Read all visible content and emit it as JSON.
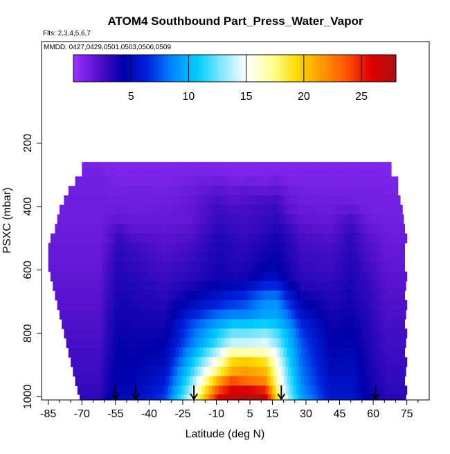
{
  "chart_data": {
    "type": "heatmap",
    "title": "ATOM4 Southbound Part_Press_Water_Vapor",
    "annotations": {
      "flights": "Flts: 2,3,4,5,6,7",
      "dates": "MMDD: 0427,0429,0501,0503,0506,0509"
    },
    "xlabel": "Latitude (deg N)",
    "ylabel": "PSXC (mbar)",
    "xlim": [
      -88,
      85
    ],
    "ylim": [
      1010,
      -120
    ],
    "x_ticks": [
      -85,
      -70,
      -55,
      -40,
      -25,
      -10,
      5,
      15,
      30,
      45,
      60,
      75
    ],
    "x_minor_ticks": [
      -80,
      -75,
      -65,
      -60,
      -50,
      -45,
      -35,
      -30,
      -20,
      -15,
      -5,
      0,
      10,
      20,
      25,
      35,
      40,
      50,
      55,
      65,
      70,
      80
    ],
    "y_ticks": [
      200,
      400,
      600,
      800,
      1000
    ],
    "colorbar": {
      "range": [
        0,
        28
      ],
      "ticks": [
        5,
        10,
        15,
        20,
        25
      ],
      "colors": [
        "#9933ff",
        "#5511cc",
        "#0000aa",
        "#0022dd",
        "#0088ff",
        "#00ccff",
        "#88e8ff",
        "#ffffff",
        "#ffff99",
        "#ffdd00",
        "#ff9900",
        "#ff5500",
        "#dd0000",
        "#aa1111"
      ]
    },
    "pressure_levels_mbar": [
      270,
      290,
      320,
      350,
      380,
      410,
      440,
      470,
      500,
      530,
      560,
      590,
      620,
      650,
      680,
      710,
      740,
      770,
      800,
      830,
      860,
      890,
      920,
      950,
      980,
      1005
    ],
    "latitude_extent_by_level": [
      [
        -70,
        68
      ],
      [
        -70,
        68
      ],
      [
        -73,
        70
      ],
      [
        -76,
        71
      ],
      [
        -78,
        72
      ],
      [
        -80,
        72
      ],
      [
        -81,
        73
      ],
      [
        -82,
        73
      ],
      [
        -84,
        74
      ],
      [
        -85,
        74
      ],
      [
        -85,
        74
      ],
      [
        -85,
        74
      ],
      [
        -84,
        74
      ],
      [
        -83,
        74
      ],
      [
        -82,
        74
      ],
      [
        -81,
        74
      ],
      [
        -80,
        74
      ],
      [
        -79,
        74
      ],
      [
        -78,
        74
      ],
      [
        -77,
        74
      ],
      [
        -76,
        74
      ],
      [
        -75,
        74
      ],
      [
        -74,
        74
      ],
      [
        -73,
        74
      ],
      [
        -72,
        74
      ],
      [
        -71,
        74
      ]
    ],
    "profile_latitudes": [
      -55,
      -46,
      -20,
      19,
      61
    ],
    "sample_lat": [
      -62,
      -58,
      -54,
      -47,
      -33,
      -22,
      -9,
      -3,
      3,
      12,
      17,
      22,
      28,
      41,
      50,
      57,
      66
    ],
    "sample_h2o": [
      [
        1.0,
        0.9,
        0.8,
        0.8,
        0.8,
        0.9,
        0.9,
        0.8,
        0.8,
        0.8,
        0.8,
        0.8,
        0.8,
        0.8,
        0.8,
        0.8,
        0.8
      ],
      [
        1.2,
        1.0,
        0.9,
        0.9,
        0.9,
        1.0,
        1.0,
        0.9,
        0.9,
        0.9,
        1.0,
        0.9,
        0.9,
        0.9,
        0.9,
        0.9,
        0.9
      ],
      [
        1.3,
        1.2,
        1.0,
        1.0,
        1.0,
        1.2,
        1.5,
        1.2,
        1.3,
        1.2,
        1.4,
        1.1,
        1.0,
        1.0,
        1.0,
        1.0,
        1.0
      ],
      [
        1.3,
        1.2,
        1.2,
        1.3,
        1.2,
        1.5,
        2.0,
        1.8,
        1.9,
        1.8,
        2.0,
        1.5,
        1.2,
        1.2,
        1.2,
        1.2,
        1.1
      ],
      [
        1.4,
        1.3,
        1.3,
        1.3,
        1.3,
        1.6,
        2.5,
        2.0,
        2.2,
        2.5,
        2.6,
        1.7,
        1.4,
        1.3,
        1.3,
        1.2,
        1.2
      ],
      [
        1.4,
        1.4,
        1.5,
        1.4,
        1.5,
        1.7,
        2.8,
        2.5,
        2.5,
        2.8,
        3.0,
        2.0,
        1.6,
        1.5,
        1.8,
        1.3,
        1.2
      ],
      [
        1.4,
        1.6,
        1.8,
        1.6,
        1.6,
        1.7,
        3.0,
        2.8,
        2.7,
        3.0,
        3.2,
        2.5,
        1.8,
        1.7,
        2.5,
        1.5,
        1.3
      ],
      [
        1.5,
        1.8,
        2.5,
        1.9,
        1.8,
        2.0,
        3.3,
        3.0,
        2.8,
        3.2,
        3.5,
        3.0,
        2.2,
        1.9,
        3.0,
        1.8,
        1.4
      ],
      [
        1.5,
        2.0,
        3.0,
        2.4,
        2.0,
        2.3,
        3.5,
        3.2,
        3.0,
        3.5,
        3.8,
        3.3,
        2.5,
        2.2,
        3.2,
        2.2,
        1.5
      ],
      [
        1.6,
        2.3,
        3.2,
        2.8,
        2.2,
        2.6,
        3.6,
        3.4,
        3.3,
        3.8,
        4.0,
        3.5,
        2.7,
        2.5,
        3.3,
        2.4,
        1.6
      ],
      [
        1.6,
        2.5,
        3.3,
        3.0,
        2.4,
        2.8,
        3.7,
        3.4,
        3.4,
        4.0,
        4.2,
        3.6,
        2.9,
        2.7,
        3.4,
        2.6,
        1.7
      ],
      [
        1.7,
        2.7,
        3.4,
        3.1,
        2.6,
        3.0,
        3.8,
        3.5,
        3.6,
        4.4,
        4.5,
        3.8,
        3.0,
        2.8,
        3.5,
        2.8,
        1.8
      ],
      [
        1.8,
        2.8,
        3.5,
        3.3,
        2.8,
        3.2,
        3.9,
        3.7,
        3.8,
        5.0,
        5.0,
        4.0,
        3.2,
        3.0,
        3.6,
        3.0,
        2.0
      ],
      [
        1.9,
        2.9,
        3.6,
        3.5,
        3.0,
        3.6,
        4.5,
        4.8,
        5.0,
        6.5,
        6.5,
        4.8,
        3.5,
        3.2,
        3.7,
        3.1,
        2.1
      ],
      [
        2.0,
        3.0,
        3.7,
        3.6,
        3.2,
        4.2,
        5.5,
        6.0,
        6.5,
        8.0,
        8.0,
        6.0,
        4.0,
        3.4,
        3.8,
        3.2,
        2.2
      ],
      [
        2.1,
        3.1,
        3.8,
        3.7,
        3.4,
        5.0,
        6.5,
        7.0,
        7.5,
        9.0,
        9.0,
        7.0,
        4.8,
        3.6,
        3.9,
        3.3,
        2.3
      ],
      [
        2.2,
        3.2,
        3.9,
        3.8,
        3.6,
        6.0,
        8.0,
        8.5,
        8.5,
        9.5,
        9.5,
        8.0,
        5.5,
        3.8,
        4.0,
        3.4,
        2.4
      ],
      [
        2.3,
        3.3,
        4.0,
        3.9,
        3.8,
        7.0,
        9.5,
        10.5,
        10.5,
        11.0,
        10.5,
        9.0,
        6.5,
        4.0,
        4.2,
        3.5,
        2.5
      ],
      [
        2.4,
        3.4,
        4.1,
        4.0,
        4.0,
        7.5,
        11.0,
        12.5,
        12.5,
        13.0,
        12.0,
        10.0,
        7.0,
        4.2,
        4.4,
        3.6,
        2.6
      ],
      [
        2.5,
        3.5,
        4.2,
        4.1,
        4.3,
        8.0,
        12.0,
        14.0,
        14.0,
        14.5,
        13.0,
        10.5,
        7.5,
        4.4,
        4.6,
        3.7,
        2.7
      ],
      [
        2.6,
        3.6,
        4.3,
        4.2,
        4.6,
        9.0,
        14.0,
        17.0,
        17.0,
        16.5,
        14.5,
        11.0,
        7.8,
        4.6,
        4.8,
        3.8,
        2.8
      ],
      [
        2.7,
        3.7,
        4.4,
        4.3,
        5.0,
        10.0,
        16.0,
        19.5,
        20.0,
        19.0,
        15.5,
        11.5,
        8.0,
        4.8,
        5.0,
        3.9,
        2.9
      ],
      [
        2.8,
        3.8,
        4.5,
        4.4,
        5.5,
        11.0,
        18.0,
        21.0,
        21.5,
        20.5,
        16.5,
        12.0,
        8.3,
        5.0,
        5.2,
        4.0,
        3.0
      ],
      [
        2.9,
        3.9,
        4.6,
        4.5,
        6.0,
        12.0,
        21.0,
        24.0,
        23.0,
        22.0,
        17.0,
        12.5,
        8.6,
        5.3,
        5.4,
        4.1,
        3.1
      ],
      [
        3.0,
        4.0,
        4.8,
        4.8,
        6.5,
        13.0,
        24.0,
        26.0,
        26.0,
        25.0,
        18.0,
        13.0,
        9.0,
        5.5,
        5.6,
        4.2,
        3.2
      ],
      [
        3.2,
        4.3,
        5.0,
        5.2,
        7.0,
        14.0,
        26.0,
        27.0,
        28.0,
        27.0,
        19.0,
        13.5,
        9.5,
        5.8,
        5.8,
        4.4,
        3.4
      ]
    ]
  }
}
